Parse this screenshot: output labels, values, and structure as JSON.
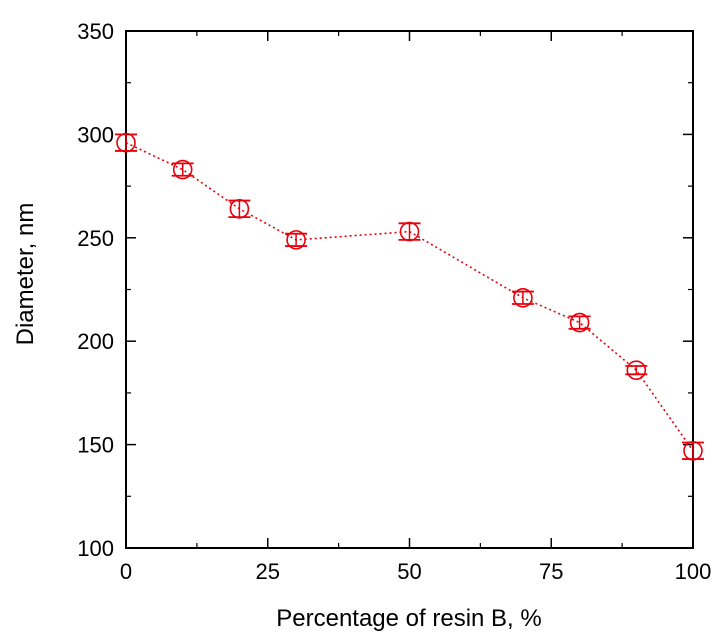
{
  "chart_data": {
    "type": "scatter",
    "title": "",
    "xlabel": "Percentage of resin B, %",
    "ylabel": "Diameter, nm",
    "xlim": [
      0,
      100
    ],
    "ylim": [
      100,
      350
    ],
    "x_ticks": [
      0,
      25,
      50,
      75,
      100
    ],
    "y_ticks": [
      100,
      150,
      200,
      250,
      300,
      350
    ],
    "x_tick_labels": [
      "0",
      "25",
      "50",
      "75",
      "100"
    ],
    "y_tick_labels": [
      "100",
      "150",
      "200",
      "250",
      "300",
      "350"
    ],
    "grid": false,
    "legend": "none",
    "marker": "open-circle",
    "line_style": "dotted",
    "color": "#e8000b",
    "series": [
      {
        "x": [
          0,
          10,
          20,
          30,
          50,
          70,
          80,
          90,
          100
        ],
        "y": [
          296,
          283,
          264,
          249,
          253,
          221,
          209,
          186,
          147
        ],
        "error": [
          4,
          3,
          4,
          3,
          4,
          3,
          3,
          2,
          4
        ]
      }
    ]
  }
}
